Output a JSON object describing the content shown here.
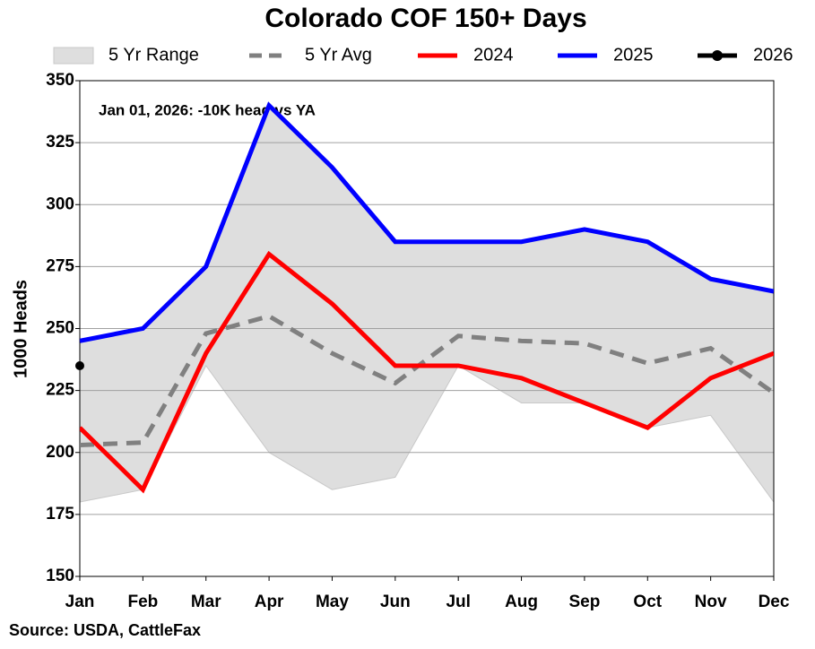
{
  "chart_data": {
    "type": "line",
    "title": "Colorado COF 150+ Days",
    "ylabel": "1000 Heads",
    "annotation": "Jan 01, 2026: -10K head vs YA",
    "source": "Source: USDA, CattleFax",
    "categories": [
      "Jan",
      "Feb",
      "Mar",
      "Apr",
      "May",
      "Jun",
      "Jul",
      "Aug",
      "Sep",
      "Oct",
      "Nov",
      "Dec"
    ],
    "ylim": [
      150,
      350
    ],
    "yticks": [
      150,
      175,
      200,
      225,
      250,
      275,
      300,
      325,
      350
    ],
    "grid": true,
    "range": {
      "name": "5 Yr Range",
      "color": "#dedede",
      "high": [
        245,
        250,
        275,
        340,
        315,
        285,
        285,
        285,
        290,
        285,
        270,
        265
      ],
      "low": [
        180,
        185,
        235,
        200,
        185,
        190,
        235,
        220,
        220,
        210,
        215,
        180
      ]
    },
    "series": [
      {
        "name": "5 Yr Avg",
        "color": "#808080",
        "dashed": true,
        "values": [
          203,
          204,
          248,
          255,
          240,
          228,
          247,
          245,
          244,
          236,
          242,
          224
        ]
      },
      {
        "name": "2024",
        "color": "#ff0000",
        "values": [
          210,
          185,
          240,
          280,
          260,
          235,
          235,
          230,
          220,
          210,
          230,
          240
        ]
      },
      {
        "name": "2025",
        "color": "#0000ff",
        "values": [
          245,
          250,
          275,
          340,
          315,
          285,
          285,
          285,
          290,
          285,
          270,
          265
        ]
      },
      {
        "name": "2026",
        "color": "#000000",
        "marker": true,
        "values": [
          235,
          null,
          null,
          null,
          null,
          null,
          null,
          null,
          null,
          null,
          null,
          null
        ]
      }
    ]
  }
}
